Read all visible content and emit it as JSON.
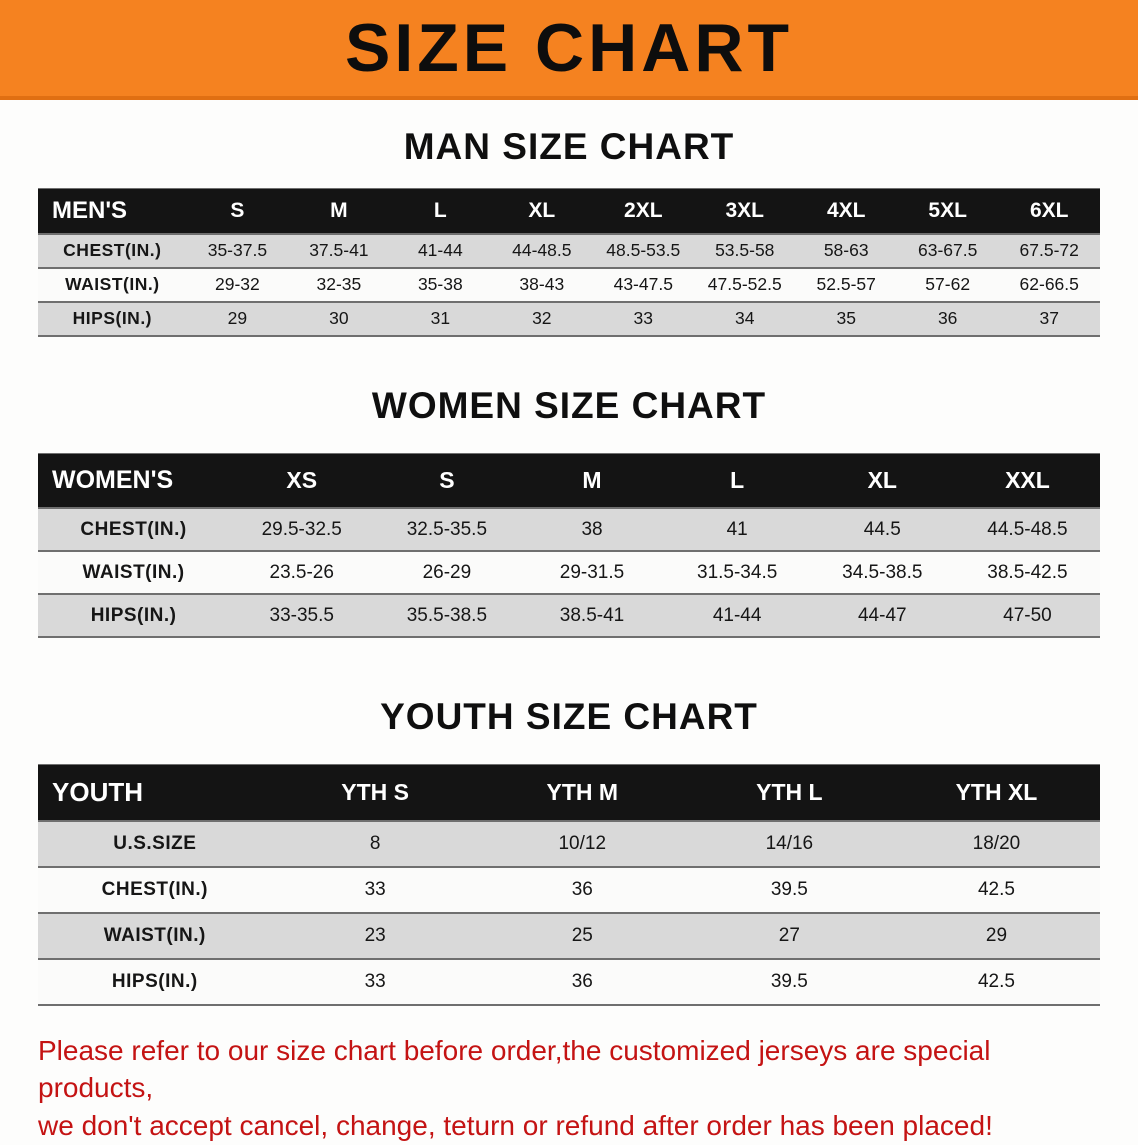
{
  "banner": {
    "title": "SIZE CHART"
  },
  "sections": [
    {
      "id": "men",
      "heading": "MAN SIZE CHART",
      "table": {
        "header": [
          "MEN'S",
          "S",
          "M",
          "L",
          "XL",
          "2XL",
          "3XL",
          "4XL",
          "5XL",
          "6XL"
        ],
        "rows": [
          {
            "label": "CHEST(IN.)",
            "values": [
              "35-37.5",
              "37.5-41",
              "41-44",
              "44-48.5",
              "48.5-53.5",
              "53.5-58",
              "58-63",
              "63-67.5",
              "67.5-72"
            ]
          },
          {
            "label": "WAIST(IN.)",
            "values": [
              "29-32",
              "32-35",
              "35-38",
              "38-43",
              "43-47.5",
              "47.5-52.5",
              "52.5-57",
              "57-62",
              "62-66.5"
            ]
          },
          {
            "label": "HIPS(IN.)",
            "values": [
              "29",
              "30",
              "31",
              "32",
              "33",
              "34",
              "35",
              "36",
              "37"
            ]
          }
        ]
      }
    },
    {
      "id": "women",
      "heading": "WOMEN SIZE CHART",
      "table": {
        "header": [
          "WOMEN'S",
          "XS",
          "S",
          "M",
          "L",
          "XL",
          "XXL"
        ],
        "rows": [
          {
            "label": "CHEST(IN.)",
            "values": [
              "29.5-32.5",
              "32.5-35.5",
              "38",
              "41",
              "44.5",
              "44.5-48.5"
            ]
          },
          {
            "label": "WAIST(IN.)",
            "values": [
              "23.5-26",
              "26-29",
              "29-31.5",
              "31.5-34.5",
              "34.5-38.5",
              "38.5-42.5"
            ]
          },
          {
            "label": "HIPS(IN.)",
            "values": [
              "33-35.5",
              "35.5-38.5",
              "38.5-41",
              "41-44",
              "44-47",
              "47-50"
            ]
          }
        ]
      }
    },
    {
      "id": "youth",
      "heading": "YOUTH SIZE CHART",
      "table": {
        "header": [
          "YOUTH",
          "YTH S",
          "YTH M",
          "YTH L",
          "YTH XL"
        ],
        "rows": [
          {
            "label": "U.S.SIZE",
            "values": [
              "8",
              "10/12",
              "14/16",
              "18/20"
            ]
          },
          {
            "label": "CHEST(IN.)",
            "values": [
              "33",
              "36",
              "39.5",
              "42.5"
            ]
          },
          {
            "label": "WAIST(IN.)",
            "values": [
              "23",
              "25",
              "27",
              "29"
            ]
          },
          {
            "label": "HIPS(IN.)",
            "values": [
              "33",
              "36",
              "39.5",
              "42.5"
            ]
          }
        ]
      }
    }
  ],
  "footer": {
    "line1": "Please refer to our size chart before order,the customized jerseys are special products,",
    "line2": "we don't accept cancel, change, teturn or refund after order has been placed!"
  }
}
